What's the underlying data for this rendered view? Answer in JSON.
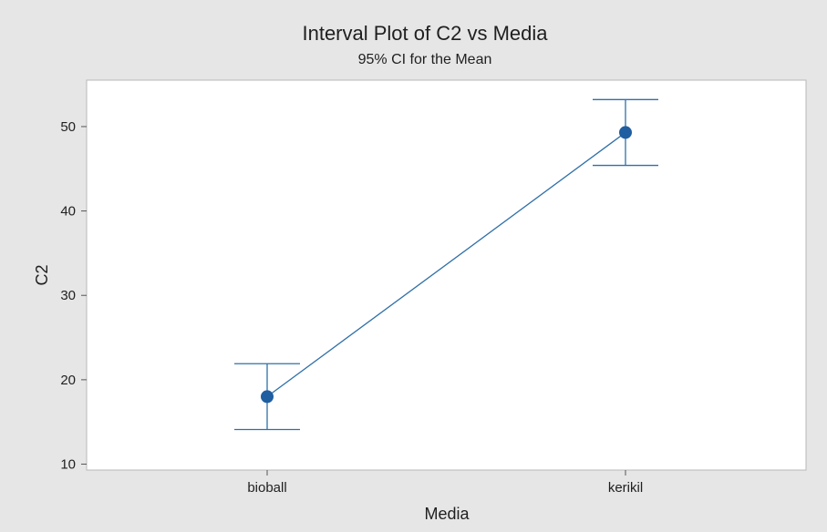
{
  "chart_data": {
    "type": "interval",
    "title": "Interval Plot of C2 vs Media",
    "subtitle": "95% CI for the Mean",
    "xlabel": "Media",
    "ylabel": "C2",
    "categories": [
      "bioball",
      "kerikil"
    ],
    "means": [
      18,
      49.3
    ],
    "lower": [
      14.1,
      45.4
    ],
    "upper": [
      21.9,
      53.2
    ],
    "ylim": [
      9.3,
      55.5
    ],
    "yticks": [
      10,
      20,
      30,
      40,
      50
    ],
    "grid": false,
    "colors": {
      "series": "#2f6fa7",
      "point": "#1f5ea0",
      "frame": "#b8b8b8",
      "plot_background": "#ffffff",
      "figure_background": "#e6e6e6"
    }
  }
}
